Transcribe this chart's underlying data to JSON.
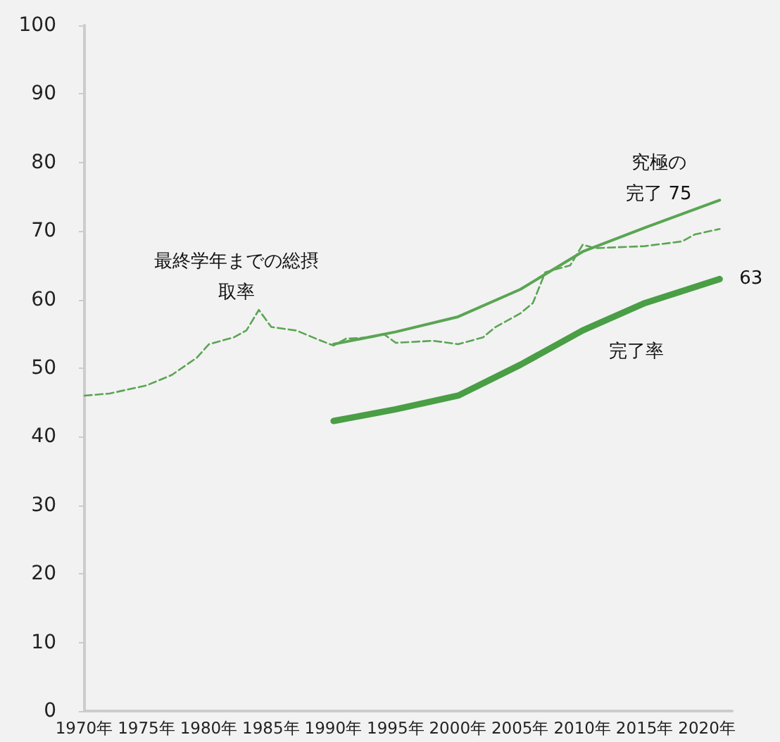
{
  "chart_data": {
    "type": "line",
    "x": [
      1970,
      1972,
      1975,
      1977,
      1979,
      1980,
      1982,
      1983,
      1984,
      1985,
      1987,
      1989,
      1990,
      1991,
      1993,
      1994,
      1995,
      1998,
      2000,
      2002,
      2003,
      2005,
      2006,
      2007,
      2008,
      2009,
      2010,
      2011,
      2015,
      2018,
      2019,
      2021
    ],
    "series": [
      {
        "color": "#5aa553",
        "line_style": "dashed",
        "values": [
          46,
          46.3,
          47.5,
          49,
          51.5,
          53.5,
          54.5,
          55.5,
          58.5,
          56,
          55.5,
          54,
          53.3,
          54.3,
          54.5,
          55,
          53.7,
          54,
          53.5,
          54.5,
          56,
          58,
          59.5,
          64,
          64.5,
          65,
          68,
          67.5,
          67.8,
          68.5,
          69.5,
          70.3
        ]
      },
      {
        "color": "#5aa553",
        "line_style": "solid",
        "x": [
          1990,
          1995,
          2000,
          2005,
          2010,
          2015,
          2021
        ],
        "values": [
          53.5,
          55.3,
          57.5,
          61.5,
          67,
          70.5,
          74.5
        ]
      },
      {
        "color": "#4a9e45",
        "line_style": "solid",
        "x": [
          1990,
          1995,
          2000,
          2005,
          2010,
          2015,
          2021
        ],
        "values": [
          42.3,
          44,
          46,
          50.5,
          55.5,
          59.5,
          63
        ]
      }
    ],
    "xlim": [
      1970,
      2022
    ],
    "xticks": [
      {
        "value": 1970,
        "label": "1970年"
      },
      {
        "value": 1975,
        "label": "1975年"
      },
      {
        "value": 1980,
        "label": "1980年"
      },
      {
        "value": 1985,
        "label": "1985年"
      },
      {
        "value": 1990,
        "label": "1990年"
      },
      {
        "value": 1995,
        "label": "1995年"
      },
      {
        "value": 2000,
        "label": "2000年"
      },
      {
        "value": 2005,
        "label": "2005年"
      },
      {
        "value": 2010,
        "label": "2010年"
      },
      {
        "value": 2015,
        "label": "2015年"
      },
      {
        "value": 2020,
        "label": "2020年"
      }
    ],
    "ylim": [
      0,
      100
    ],
    "yticks": [
      0,
      10,
      20,
      30,
      40,
      50,
      60,
      70,
      80,
      90,
      100
    ],
    "grid": false,
    "marker": "none",
    "annotations": [
      "最終学年までの総摂取率",
      "究極の完了 75",
      "完了率",
      {
        "text": "63",
        "x": 2021,
        "y": 63
      }
    ]
  }
}
